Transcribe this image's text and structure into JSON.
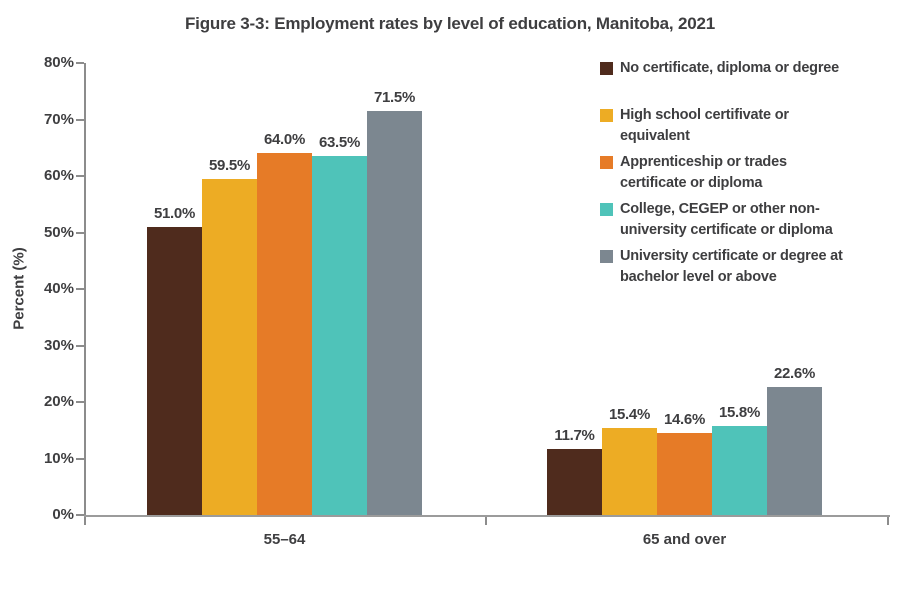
{
  "title": "Figure 3-3: Employment rates by level of education, Manitoba, 2021",
  "chart_data": {
    "type": "bar",
    "categories": [
      "55–64",
      "65 and over"
    ],
    "series": [
      {
        "name": "No certificate, diploma or degree",
        "color": "#4F2B1D",
        "values": [
          51.0,
          11.7
        ]
      },
      {
        "name": "High school certifivate or equivalent",
        "color": "#EDAC24",
        "values": [
          59.5,
          15.4
        ]
      },
      {
        "name": "Apprenticeship or trades certificate or diploma",
        "color": "#E67B27",
        "values": [
          64.0,
          14.6
        ]
      },
      {
        "name": "College, CEGEP or other non-university certificate or diploma",
        "color": "#4FC3B9",
        "values": [
          63.5,
          15.8
        ]
      },
      {
        "name": "University certificate or degree at bachelor level or above",
        "color": "#7C8790",
        "values": [
          71.5,
          22.6
        ]
      }
    ],
    "xlabel": "",
    "ylabel": "Percent (%)",
    "ylim": [
      0,
      80
    ],
    "ytick_labels": [
      "0%",
      "10%",
      "20%",
      "30%",
      "40%",
      "50%",
      "60%",
      "70%",
      "80%"
    ],
    "value_label_format": "percent_1dp",
    "grid": false,
    "legend_position": "right"
  },
  "legend": {
    "items": [
      {
        "lines": [
          "No certificate, diploma or degree"
        ]
      },
      {
        "lines": [
          "High school certifivate or",
          "equivalent"
        ]
      },
      {
        "lines": [
          "Apprenticeship or trades",
          "certificate or diploma"
        ]
      },
      {
        "lines": [
          "College, CEGEP or other non-",
          "university certificate or diploma"
        ]
      },
      {
        "lines": [
          "University certificate or degree at",
          "bachelor level or above"
        ]
      }
    ]
  },
  "colors": {
    "text": "#3E3E40",
    "axis": "#8C8C8C"
  }
}
